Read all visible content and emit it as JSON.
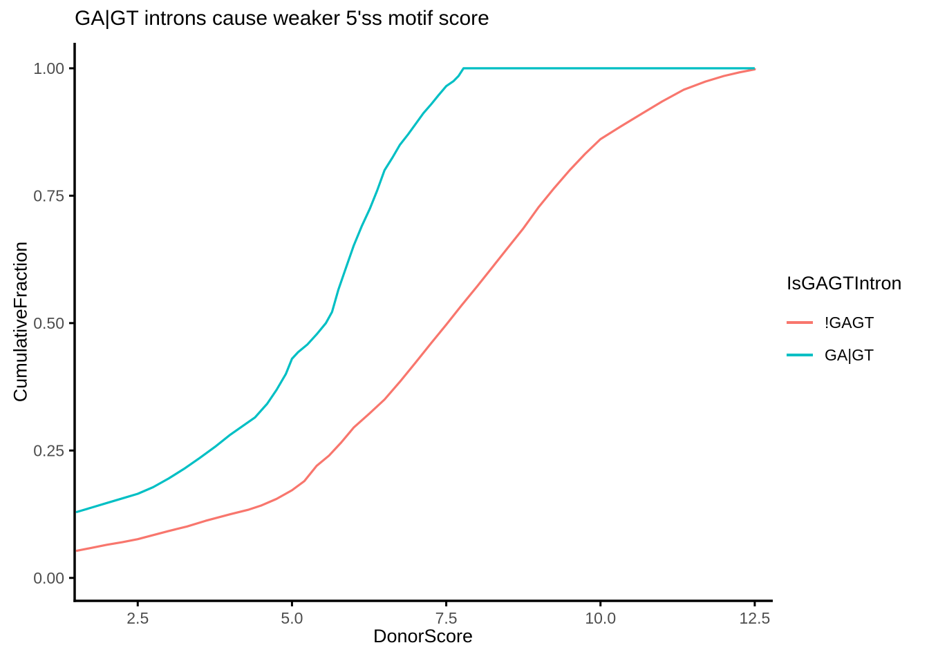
{
  "chart_data": {
    "type": "line",
    "subtype": "ecdf",
    "title": "GA|GT introns cause weaker 5'ss motif score",
    "xlabel": "DonorScore",
    "ylabel": "CumulativeFraction",
    "legend_title": "IsGAGTIntron",
    "legend_position": "right",
    "grid": false,
    "background": "#FFFFFF",
    "axis_text_color": "#4D4D4D",
    "axis_line_color": "#000000",
    "xlim": [
      1.5,
      12.77
    ],
    "ylim": [
      -0.045,
      1.05
    ],
    "x_ticks": {
      "values": [
        2.5,
        5.0,
        7.5,
        10.0,
        12.5
      ],
      "labels": [
        "2.5",
        "5.0",
        "7.5",
        "10.0",
        "12.5"
      ]
    },
    "y_ticks": {
      "values": [
        0.0,
        0.25,
        0.5,
        0.75,
        1.0
      ],
      "labels": [
        "0.00",
        "0.25",
        "0.50",
        "0.75",
        "1.00"
      ]
    },
    "series": [
      {
        "id": "not-gagt",
        "name": "!GAGT",
        "color": "#F8766D",
        "points": [
          [
            1.5,
            0.053
          ],
          [
            1.75,
            0.059
          ],
          [
            2.0,
            0.065
          ],
          [
            2.25,
            0.07
          ],
          [
            2.5,
            0.076
          ],
          [
            2.75,
            0.084
          ],
          [
            3.0,
            0.092
          ],
          [
            3.3,
            0.101
          ],
          [
            3.6,
            0.112
          ],
          [
            4.0,
            0.125
          ],
          [
            4.3,
            0.134
          ],
          [
            4.5,
            0.142
          ],
          [
            4.75,
            0.155
          ],
          [
            5.0,
            0.172
          ],
          [
            5.2,
            0.19
          ],
          [
            5.4,
            0.22
          ],
          [
            5.6,
            0.24
          ],
          [
            5.8,
            0.266
          ],
          [
            6.0,
            0.295
          ],
          [
            6.25,
            0.322
          ],
          [
            6.5,
            0.35
          ],
          [
            6.75,
            0.385
          ],
          [
            7.0,
            0.422
          ],
          [
            7.25,
            0.46
          ],
          [
            7.5,
            0.497
          ],
          [
            7.75,
            0.535
          ],
          [
            8.0,
            0.572
          ],
          [
            8.25,
            0.61
          ],
          [
            8.5,
            0.648
          ],
          [
            8.75,
            0.686
          ],
          [
            9.0,
            0.728
          ],
          [
            9.25,
            0.765
          ],
          [
            9.5,
            0.8
          ],
          [
            9.75,
            0.832
          ],
          [
            10.0,
            0.861
          ],
          [
            10.33,
            0.886
          ],
          [
            10.67,
            0.911
          ],
          [
            11.0,
            0.935
          ],
          [
            11.35,
            0.958
          ],
          [
            11.7,
            0.974
          ],
          [
            12.0,
            0.985
          ],
          [
            12.25,
            0.992
          ],
          [
            12.5,
            0.998
          ],
          [
            12.5,
            1.0
          ]
        ]
      },
      {
        "id": "gagt",
        "name": "GA|GT",
        "color": "#00BFC4",
        "points": [
          [
            1.5,
            0.129
          ],
          [
            1.75,
            0.138
          ],
          [
            2.0,
            0.147
          ],
          [
            2.25,
            0.156
          ],
          [
            2.5,
            0.165
          ],
          [
            2.75,
            0.178
          ],
          [
            3.0,
            0.195
          ],
          [
            3.25,
            0.214
          ],
          [
            3.5,
            0.235
          ],
          [
            3.75,
            0.257
          ],
          [
            4.0,
            0.281
          ],
          [
            4.2,
            0.298
          ],
          [
            4.4,
            0.315
          ],
          [
            4.6,
            0.342
          ],
          [
            4.75,
            0.369
          ],
          [
            4.9,
            0.4
          ],
          [
            5.0,
            0.43
          ],
          [
            5.1,
            0.443
          ],
          [
            5.25,
            0.458
          ],
          [
            5.4,
            0.478
          ],
          [
            5.55,
            0.5
          ],
          [
            5.65,
            0.522
          ],
          [
            5.75,
            0.565
          ],
          [
            5.85,
            0.6
          ],
          [
            6.0,
            0.652
          ],
          [
            6.13,
            0.69
          ],
          [
            6.26,
            0.724
          ],
          [
            6.38,
            0.76
          ],
          [
            6.5,
            0.8
          ],
          [
            6.63,
            0.825
          ],
          [
            6.75,
            0.85
          ],
          [
            6.88,
            0.87
          ],
          [
            7.0,
            0.89
          ],
          [
            7.13,
            0.912
          ],
          [
            7.26,
            0.93
          ],
          [
            7.38,
            0.948
          ],
          [
            7.5,
            0.965
          ],
          [
            7.62,
            0.975
          ],
          [
            7.7,
            0.985
          ],
          [
            7.78,
            1.0
          ],
          [
            12.5,
            1.0
          ]
        ]
      }
    ]
  }
}
